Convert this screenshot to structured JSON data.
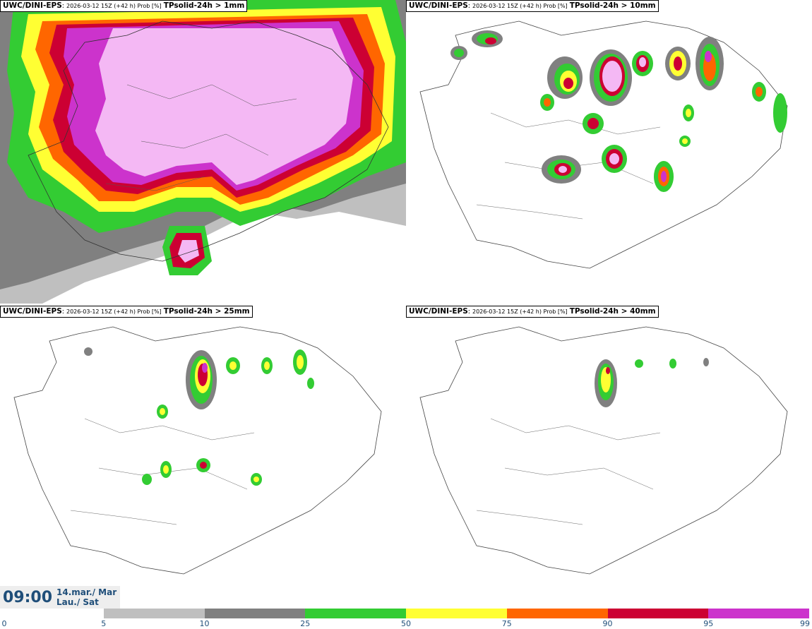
{
  "panels": [
    {
      "model": "UWC/DINI-EPS",
      "run": "2026-03-12 15Z (+42 h) Prob [%]",
      "param": "TPsolid-24h > 1mm",
      "level": 1
    },
    {
      "model": "UWC/DINI-EPS",
      "run": "2026-03-12 15Z (+42 h) Prob [%]",
      "param": "TPsolid-24h > 10mm",
      "level": 2
    },
    {
      "model": "UWC/DINI-EPS",
      "run": "2026-03-12 15Z (+42 h) Prob [%]",
      "param": "TPsolid-24h > 25mm",
      "level": 3
    },
    {
      "model": "UWC/DINI-EPS",
      "run": "2026-03-12 15Z (+42 h) Prob [%]",
      "param": "TPsolid-24h > 40mm",
      "level": 4
    }
  ],
  "valid_time": {
    "time": "09:00",
    "date_line1": "14.mar./ Mar",
    "date_line2": "Lau./ Sat"
  },
  "legend": {
    "ticks": [
      "0",
      "5",
      "10",
      "25",
      "50",
      "75",
      "90",
      "95",
      "99"
    ],
    "colors": [
      "#ffffff",
      "#bfbfbf",
      "#808080",
      "#33cc33",
      "#ffff33",
      "#ff6600",
      "#cc0033",
      "#cc33cc",
      "#f4b8f4"
    ]
  }
}
